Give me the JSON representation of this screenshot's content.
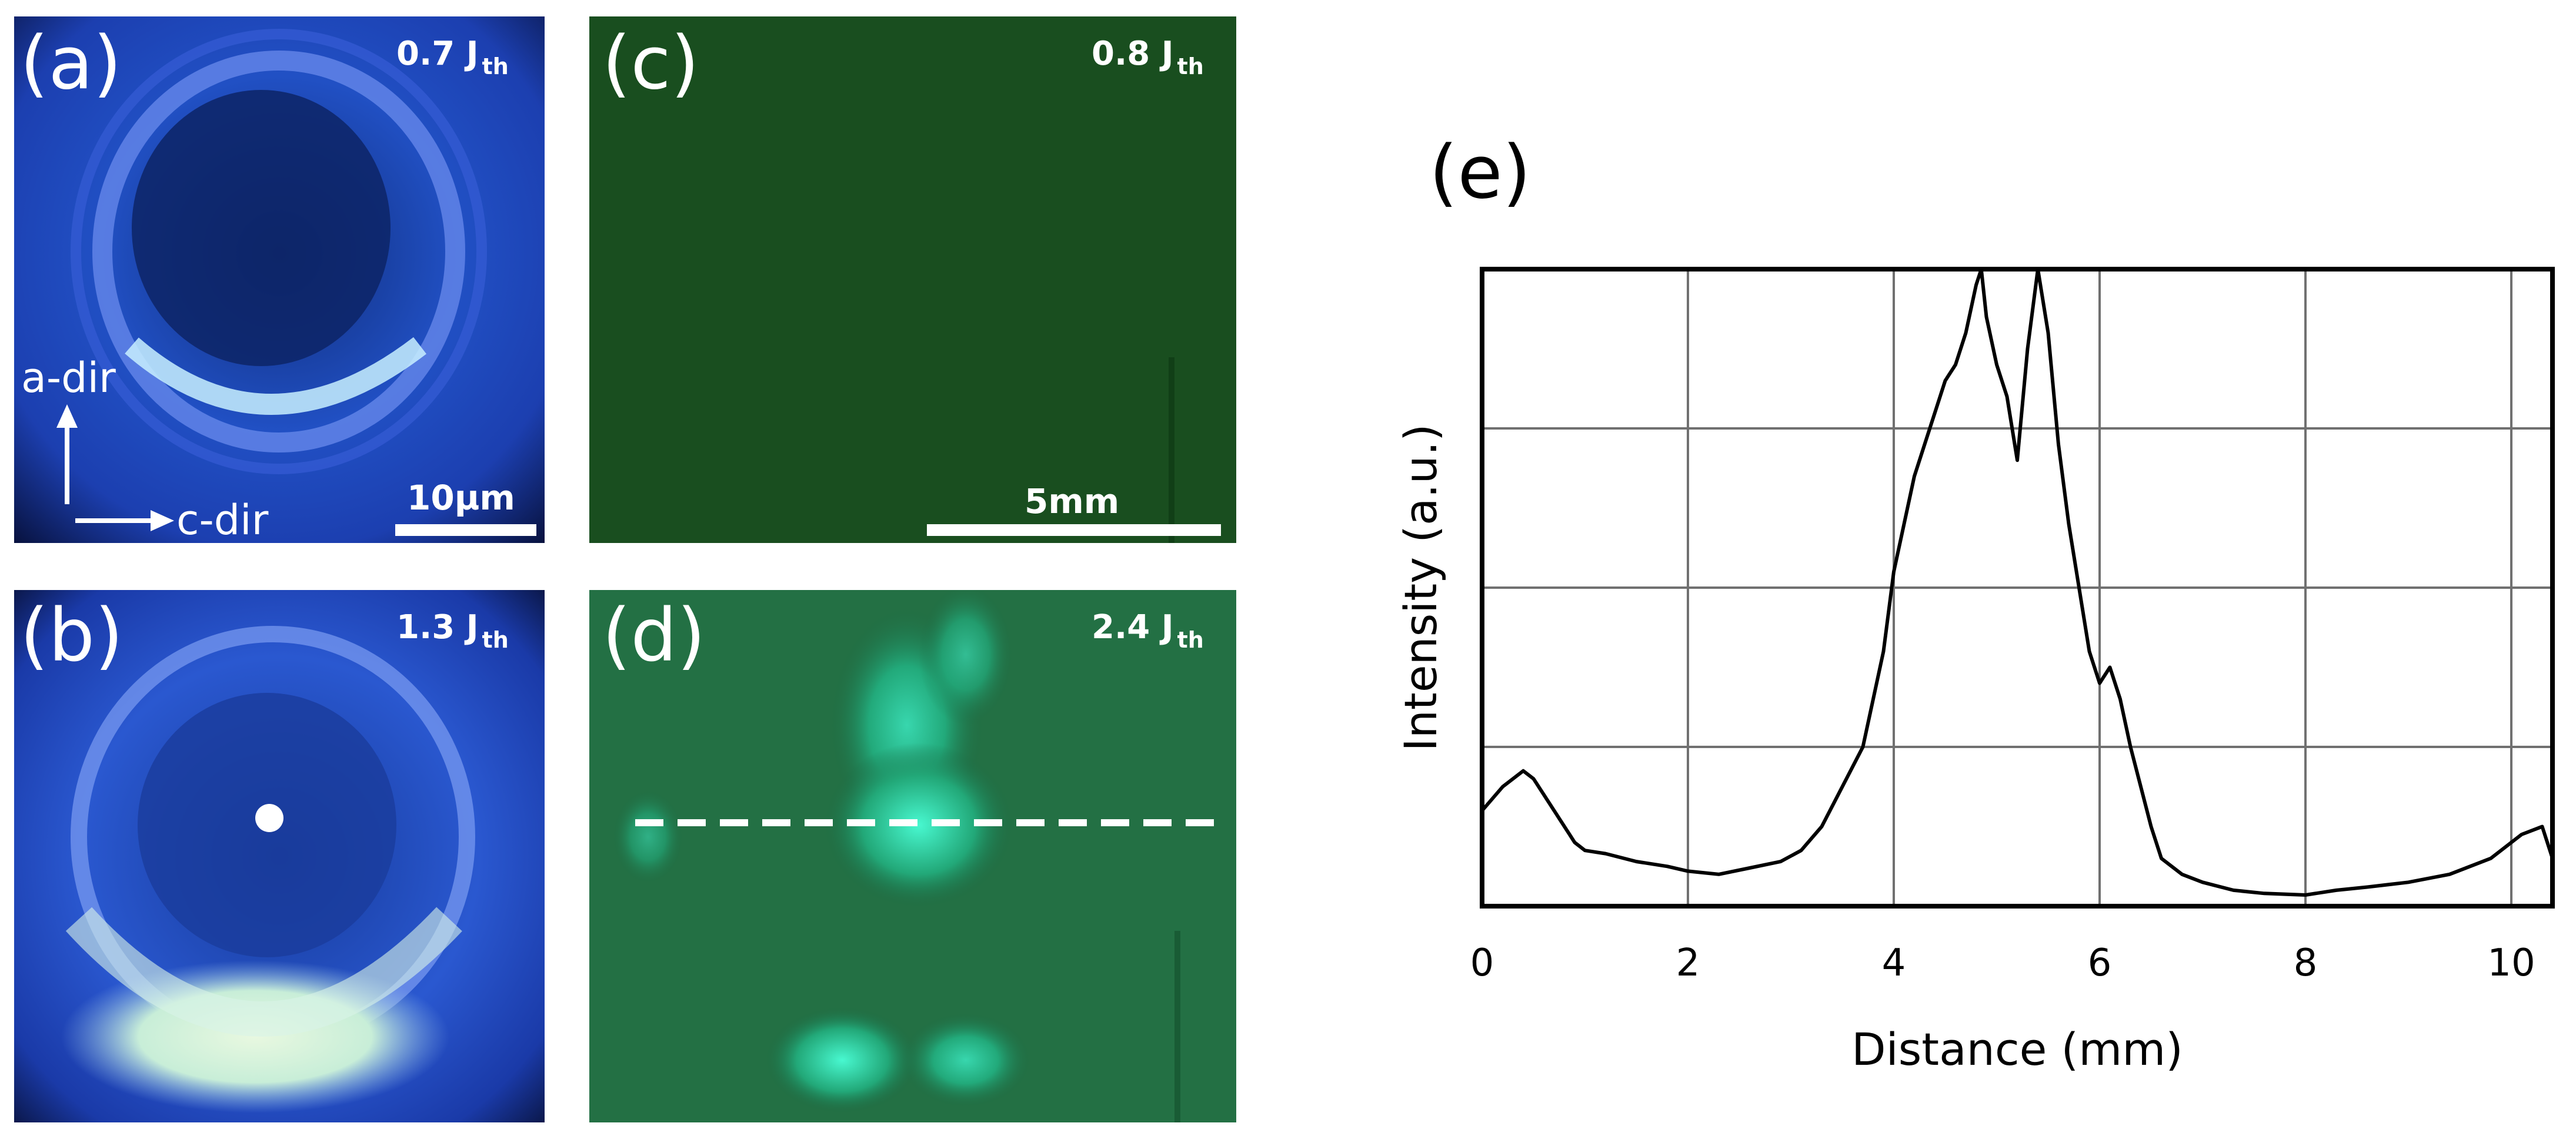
{
  "figure": {
    "panels": {
      "a": {
        "label": "(a)",
        "current_value": "0.7",
        "current_unit": "J",
        "current_sub": "th",
        "scale_label": "10µm",
        "dir_vertical": "a-dir",
        "dir_horizontal": "c-dir"
      },
      "b": {
        "label": "(b)",
        "current_value": "1.3",
        "current_unit": "J",
        "current_sub": "th"
      },
      "c": {
        "label": "(c)",
        "current_value": "0.8",
        "current_unit": "J",
        "current_sub": "th",
        "scale_label": "5mm"
      },
      "d": {
        "label": "(d)",
        "current_value": "2.4",
        "current_unit": "J",
        "current_sub": "th"
      },
      "e": {
        "label": "(e)"
      }
    }
  },
  "chart_data": {
    "type": "line",
    "xlabel": "Distance (mm)",
    "ylabel": "Intensity (a.u.)",
    "xlim": [
      0,
      10.4
    ],
    "ylim": [
      0,
      4
    ],
    "xticks": [
      0,
      2,
      4,
      6,
      8,
      10
    ],
    "ygrid": [
      1,
      2,
      3,
      4
    ],
    "grid": true,
    "line_color": "#000000",
    "series": [
      {
        "x": [
          0,
          0.2,
          0.4,
          0.5,
          0.7,
          0.9,
          1.0,
          1.2,
          1.5,
          1.8,
          2.0,
          2.3,
          2.6,
          2.9,
          3.1,
          3.3,
          3.5,
          3.7,
          3.8,
          3.9,
          4.0,
          4.1,
          4.2,
          4.3,
          4.4,
          4.5,
          4.6,
          4.7,
          4.8,
          4.85,
          4.9,
          5.0,
          5.1,
          5.2,
          5.3,
          5.4,
          5.5,
          5.6,
          5.7,
          5.8,
          5.9,
          6.0,
          6.1,
          6.2,
          6.3,
          6.4,
          6.5,
          6.6,
          6.8,
          7.0,
          7.3,
          7.6,
          8.0,
          8.3,
          8.6,
          9.0,
          9.4,
          9.8,
          10.1,
          10.3,
          10.4
        ],
        "y": [
          0.6,
          0.75,
          0.85,
          0.8,
          0.6,
          0.4,
          0.35,
          0.33,
          0.28,
          0.25,
          0.22,
          0.2,
          0.24,
          0.28,
          0.35,
          0.5,
          0.75,
          1.0,
          1.3,
          1.6,
          2.1,
          2.4,
          2.7,
          2.9,
          3.1,
          3.3,
          3.4,
          3.6,
          3.9,
          4.0,
          3.7,
          3.4,
          3.2,
          2.8,
          3.5,
          4.0,
          3.6,
          2.9,
          2.4,
          2.0,
          1.6,
          1.4,
          1.5,
          1.3,
          1.0,
          0.75,
          0.5,
          0.3,
          0.2,
          0.15,
          0.1,
          0.08,
          0.07,
          0.1,
          0.12,
          0.15,
          0.2,
          0.3,
          0.45,
          0.5,
          0.3
        ]
      }
    ]
  }
}
